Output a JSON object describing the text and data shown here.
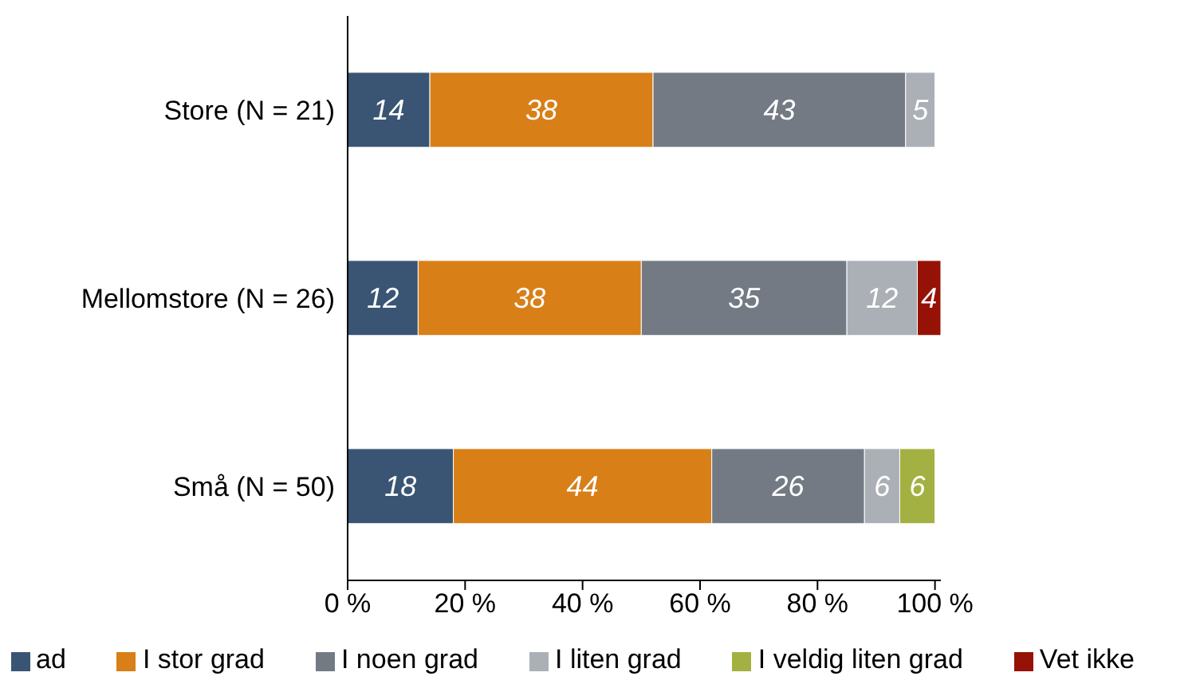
{
  "chart_data": {
    "type": "bar",
    "orientation": "horizontal",
    "stacked": true,
    "categories": [
      "Store (N = 21)",
      "Mellomstore  (N = 26)",
      "Små (N = 50)"
    ],
    "series": [
      {
        "name": "ad",
        "color": "#3a5574",
        "values": [
          14,
          12,
          18
        ]
      },
      {
        "name": "I stor grad",
        "color": "#d87f18",
        "values": [
          38,
          38,
          44
        ]
      },
      {
        "name": "I noen grad",
        "color": "#737a83",
        "values": [
          43,
          35,
          26
        ]
      },
      {
        "name": "I liten grad",
        "color": "#abb0b6",
        "values": [
          5,
          12,
          6
        ]
      },
      {
        "name": "I veldig liten grad",
        "color": "#a3b142",
        "values": [
          null,
          null,
          6
        ]
      },
      {
        "name": "Vet ikke",
        "color": "#961206",
        "values": [
          null,
          4,
          null
        ]
      }
    ],
    "xlim": [
      0,
      101
    ],
    "xticks": [
      {
        "value": 0,
        "label": "0 %"
      },
      {
        "value": 20,
        "label": "20 %"
      },
      {
        "value": 40,
        "label": "40 %"
      },
      {
        "value": 60,
        "label": "60 %"
      },
      {
        "value": 80,
        "label": "80 %"
      },
      {
        "value": 100,
        "label": "100 %"
      }
    ],
    "data_labels": true,
    "legend": "bottom",
    "grid": false
  }
}
